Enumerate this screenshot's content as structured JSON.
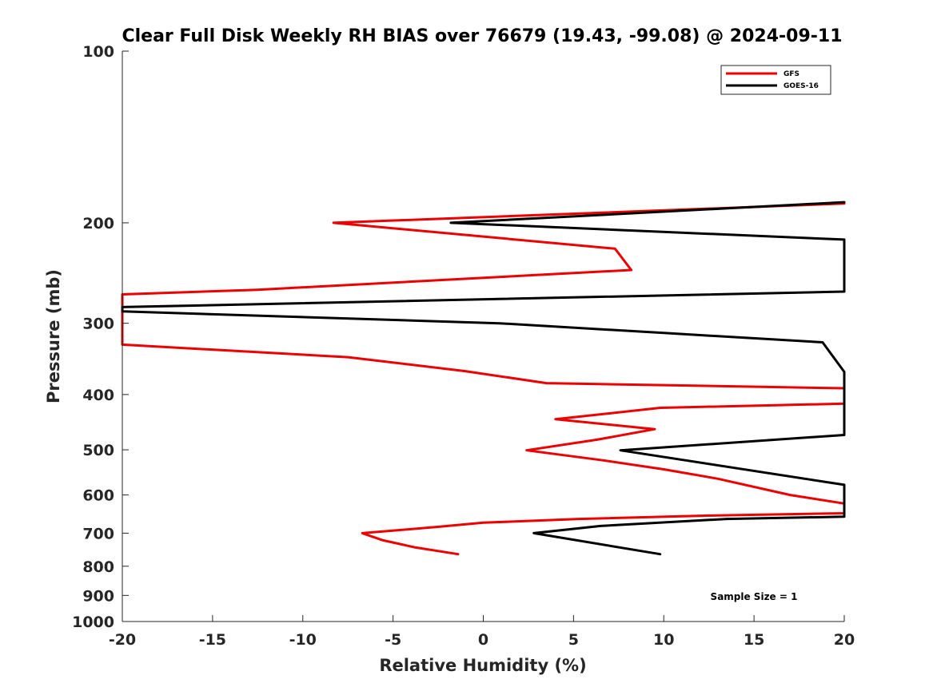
{
  "chart_data": {
    "type": "line",
    "title": "Clear Full Disk Weekly RH BIAS over 76679 (19.43, -99.08) @ 2024-09-11",
    "xlabel": "Relative Humidity (%)",
    "ylabel": "Pressure (mb)",
    "xlim": [
      -20,
      20
    ],
    "ylim": [
      100,
      1000
    ],
    "y_scale": "log",
    "y_reversed": true,
    "x_ticks": [
      -20,
      -15,
      -10,
      -5,
      0,
      5,
      10,
      15,
      20
    ],
    "y_ticks": [
      100,
      200,
      300,
      400,
      500,
      600,
      700,
      800,
      900,
      1000
    ],
    "grid": false,
    "legend_position": "top-right",
    "annotation": "Sample Size = 1",
    "series": [
      {
        "name": "GFS",
        "color": "#ee0000",
        "points": [
          [
            20,
            185
          ],
          [
            -8.3,
            200
          ],
          [
            7.3,
            222
          ],
          [
            8.2,
            242
          ],
          [
            -12.5,
            262
          ],
          [
            -20,
            267
          ],
          [
            -20,
            327
          ],
          [
            -7.5,
            344
          ],
          [
            -1,
            364
          ],
          [
            3.5,
            382
          ],
          [
            20,
            390
          ],
          [
            20,
            415
          ],
          [
            9.8,
            422
          ],
          [
            4,
            442
          ],
          [
            9.5,
            460
          ],
          [
            6.3,
            480
          ],
          [
            2.4,
            501
          ],
          [
            6.5,
            521
          ],
          [
            10,
            541
          ],
          [
            13,
            562
          ],
          [
            17,
            600
          ],
          [
            20,
            621
          ],
          [
            20,
            646
          ],
          [
            12.5,
            652
          ],
          [
            5.3,
            661
          ],
          [
            0,
            671
          ],
          [
            -2.4,
            682
          ],
          [
            -6.7,
            700
          ],
          [
            -5.6,
            720
          ],
          [
            -3.8,
            741
          ],
          [
            -1.4,
            762
          ]
        ]
      },
      {
        "name": "GOES-16",
        "color": "#000000",
        "points": [
          [
            20,
            184
          ],
          [
            -1.8,
            200
          ],
          [
            20,
            214
          ],
          [
            20,
            264
          ],
          [
            -20,
            281
          ],
          [
            -20,
            286
          ],
          [
            0.9,
            300
          ],
          [
            10,
            312
          ],
          [
            18.8,
            324
          ],
          [
            20,
            365
          ],
          [
            20,
            471
          ],
          [
            7.6,
            501
          ],
          [
            20,
            576
          ],
          [
            20,
            655
          ],
          [
            13.5,
            661
          ],
          [
            6.5,
            680
          ],
          [
            2.8,
            700
          ],
          [
            9.8,
            762
          ]
        ]
      }
    ]
  }
}
